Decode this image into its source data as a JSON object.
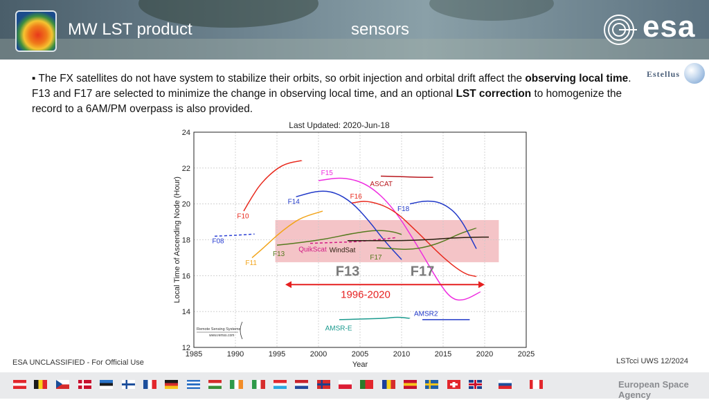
{
  "header": {
    "title": "MW LST product",
    "subtitle": "sensors",
    "brand_logo": "esa",
    "partner_logo": "Estellus"
  },
  "body": {
    "bullet_marker": "▪",
    "paragraph": [
      {
        "text": "The FX satellites do not have system to stabilize their orbits, so orbit injection and orbital drift affect the ",
        "bold": false
      },
      {
        "text": "observing local time",
        "bold": true
      },
      {
        "text": ". F13 and F17 are selected to minimize the change in observing local time, and an optional  ",
        "bold": false
      },
      {
        "text": "LST correction",
        "bold": true
      },
      {
        "text": " to homogenize the record to a 6AM/PM overpass is also provided.",
        "bold": false
      }
    ]
  },
  "chart_data": {
    "type": "line",
    "title": "Last Updated: 2020-Jun-18",
    "xlabel": "Year",
    "ylabel": "Local Time of Ascending Node (Hour)",
    "xlim": [
      1985,
      2025
    ],
    "ylim": [
      12,
      24
    ],
    "xticks": [
      1985,
      1990,
      1995,
      2000,
      2005,
      2010,
      2015,
      2020,
      2025
    ],
    "yticks": [
      12,
      14,
      16,
      18,
      20,
      22,
      24
    ],
    "grid": true,
    "highlight_band": {
      "x": [
        1994.8,
        2021.7
      ],
      "y": [
        16.75,
        19.1
      ],
      "color": "#f4c4c7"
    },
    "arrow": {
      "x": [
        1996,
        2020
      ],
      "y": 15.5,
      "label": "1996-2020",
      "color": "#e62020"
    },
    "big_labels": [
      {
        "text": "F13",
        "x": 2003.5,
        "y": 16.0
      },
      {
        "text": "F17",
        "x": 2012.5,
        "y": 16.0
      }
    ],
    "credit": {
      "line1": "Remote Sensing Systems",
      "line2": "www.remss.com"
    },
    "series": [
      {
        "name": "F08",
        "color": "#2a3fd4",
        "dashed": true,
        "label_xy": [
          1987.2,
          17.8
        ],
        "points": [
          [
            1987.5,
            18.2
          ],
          [
            1990,
            18.25
          ],
          [
            1992.3,
            18.32
          ]
        ]
      },
      {
        "name": "F10",
        "color": "#e8281c",
        "label_xy": [
          1990.2,
          19.2
        ],
        "points": [
          [
            1991,
            19.6
          ],
          [
            1992,
            20.4
          ],
          [
            1993,
            21.1
          ],
          [
            1994.5,
            21.8
          ],
          [
            1996,
            22.25
          ],
          [
            1998,
            22.42
          ]
        ]
      },
      {
        "name": "F11",
        "color": "#f2a41a",
        "label_xy": [
          1991.2,
          16.6
        ],
        "points": [
          [
            1992,
            17.0
          ],
          [
            1993.5,
            17.6
          ],
          [
            1995,
            18.25
          ],
          [
            1996.5,
            18.8
          ],
          [
            1998,
            19.25
          ],
          [
            2000.5,
            19.6
          ]
        ]
      },
      {
        "name": "F13",
        "color": "#557a1e",
        "label_xy": [
          1994.5,
          17.1
        ],
        "points": [
          [
            1995,
            17.7
          ],
          [
            1998,
            17.85
          ],
          [
            2001,
            18.05
          ],
          [
            2004,
            18.35
          ],
          [
            2007,
            18.55
          ],
          [
            2009,
            18.45
          ],
          [
            2010,
            18.3
          ]
        ]
      },
      {
        "name": "F14",
        "color": "#2038c8",
        "label_xy": [
          1996.3,
          20.0
        ],
        "points": [
          [
            1997.3,
            20.4
          ],
          [
            2000,
            20.75
          ],
          [
            2002,
            20.65
          ],
          [
            2004,
            20.1
          ],
          [
            2006,
            19.1
          ],
          [
            2008,
            17.9
          ],
          [
            2010,
            16.9
          ]
        ]
      },
      {
        "name": "F15",
        "color": "#ee2be0",
        "label_xy": [
          2000.3,
          21.6
        ],
        "points": [
          [
            2000,
            21.3
          ],
          [
            2003,
            21.5
          ],
          [
            2006,
            21.1
          ],
          [
            2009,
            19.8
          ],
          [
            2012,
            17.6
          ],
          [
            2014.5,
            15.6
          ],
          [
            2016,
            14.7
          ],
          [
            2017.5,
            14.6
          ],
          [
            2019.5,
            15.1
          ]
        ]
      },
      {
        "name": "F16",
        "color": "#e8281c",
        "label_xy": [
          2003.8,
          20.3
        ],
        "points": [
          [
            2004,
            20.05
          ],
          [
            2006,
            20.2
          ],
          [
            2009,
            19.7
          ],
          [
            2012,
            18.4
          ],
          [
            2015,
            17.0
          ],
          [
            2017.5,
            16.1
          ],
          [
            2019,
            15.95
          ]
        ]
      },
      {
        "name": "F17",
        "color": "#557a1e",
        "label_xy": [
          2006.2,
          16.9
        ],
        "points": [
          [
            2007,
            17.55
          ],
          [
            2009,
            17.5
          ],
          [
            2011,
            17.45
          ],
          [
            2013,
            17.6
          ],
          [
            2015,
            17.9
          ],
          [
            2017,
            18.35
          ],
          [
            2019,
            18.65
          ]
        ]
      },
      {
        "name": "F18",
        "color": "#2038c8",
        "label_xy": [
          2009.5,
          19.6
        ],
        "points": [
          [
            2011,
            20.0
          ],
          [
            2013,
            20.2
          ],
          [
            2015,
            20.05
          ],
          [
            2017,
            19.3
          ],
          [
            2019,
            17.5
          ]
        ]
      },
      {
        "name": "ASCAT",
        "color": "#b8161c",
        "label_xy": [
          2006.2,
          21.0
        ],
        "points": [
          [
            2007.5,
            21.55
          ],
          [
            2010,
            21.52
          ],
          [
            2012,
            21.48
          ],
          [
            2013.8,
            21.48
          ]
        ]
      },
      {
        "name": "QuikScat",
        "color": "#d11a84",
        "dashed": true,
        "label_xy": [
          1997.6,
          17.35
        ],
        "points": [
          [
            1999,
            17.8
          ],
          [
            2002,
            17.85
          ],
          [
            2005,
            17.9
          ],
          [
            2008,
            18.05
          ],
          [
            2009.3,
            18.12
          ]
        ]
      },
      {
        "name": "WindSat",
        "color": "#2b1d0e",
        "label_xy": [
          2001.3,
          17.3
        ],
        "points": [
          [
            2003.5,
            17.95
          ],
          [
            2007,
            17.95
          ],
          [
            2010,
            17.95
          ],
          [
            2013,
            18.0
          ],
          [
            2016,
            18.1
          ],
          [
            2019,
            18.15
          ],
          [
            2020.5,
            18.15
          ]
        ]
      },
      {
        "name": "AMSR-E",
        "color": "#1a9a8e",
        "label_xy": [
          2000.8,
          12.95
        ],
        "points": [
          [
            2002.5,
            13.55
          ],
          [
            2005,
            13.58
          ],
          [
            2008,
            13.62
          ],
          [
            2009.5,
            13.7
          ],
          [
            2011,
            13.62
          ]
        ]
      },
      {
        "name": "AMSR2",
        "color": "#2038c8",
        "label_xy": [
          2011.5,
          13.75
        ],
        "points": [
          [
            2012.5,
            13.55
          ],
          [
            2015,
            13.55
          ],
          [
            2018.2,
            13.55
          ]
        ]
      }
    ]
  },
  "footer": {
    "classification": "ESA UNCLASSIFIED - For Official Use",
    "event": "LSTcci UWS 12/2024",
    "agency": "European Space Agency"
  },
  "flags": [
    {
      "name": "austria",
      "colors": [
        "#e2262c",
        "#ffffff",
        "#e2262c"
      ],
      "dir": "h"
    },
    {
      "name": "belgium",
      "colors": [
        "#1a1a1a",
        "#f7d21c",
        "#e2262c"
      ],
      "dir": "v"
    },
    {
      "name": "czechia",
      "colors": [
        "#ffffff",
        "#d62c2c"
      ],
      "dir": "h",
      "tri": "#1a4e98"
    },
    {
      "name": "denmark",
      "colors": [
        "#c8102e"
      ],
      "dir": "cross",
      "cross": "#ffffff"
    },
    {
      "name": "estonia",
      "colors": [
        "#2a74c9",
        "#1a1a1a",
        "#ffffff"
      ],
      "dir": "h"
    },
    {
      "name": "finland",
      "colors": [
        "#ffffff"
      ],
      "dir": "cross",
      "cross": "#1d4f9c"
    },
    {
      "name": "france",
      "colors": [
        "#1d4f9c",
        "#ffffff",
        "#e2262c"
      ],
      "dir": "v"
    },
    {
      "name": "germany",
      "colors": [
        "#1a1a1a",
        "#d62c2c",
        "#f7c51c"
      ],
      "dir": "h"
    },
    {
      "name": "greece",
      "colors": [
        "#2a6fc4",
        "#ffffff",
        "#2a6fc4",
        "#ffffff",
        "#2a6fc4"
      ],
      "dir": "h"
    },
    {
      "name": "hungary",
      "colors": [
        "#d62c2c",
        "#ffffff",
        "#3a8f3a"
      ],
      "dir": "h"
    },
    {
      "name": "ireland",
      "colors": [
        "#2e9a49",
        "#ffffff",
        "#f28c28"
      ],
      "dir": "v"
    },
    {
      "name": "italy",
      "colors": [
        "#2e9a49",
        "#ffffff",
        "#d62c2c"
      ],
      "dir": "v"
    },
    {
      "name": "luxembourg",
      "colors": [
        "#e2262c",
        "#ffffff",
        "#2aa7e0"
      ],
      "dir": "h"
    },
    {
      "name": "netherlands",
      "colors": [
        "#c8222c",
        "#ffffff",
        "#234a9c"
      ],
      "dir": "h"
    },
    {
      "name": "norway",
      "colors": [
        "#d62c2c"
      ],
      "dir": "cross",
      "cross": "#1d3f8c"
    },
    {
      "name": "poland",
      "colors": [
        "#ffffff",
        "#dc1e35"
      ],
      "dir": "h"
    },
    {
      "name": "portugal",
      "colors": [
        "#2a7a2a",
        "#e2262c"
      ],
      "dir": "v2"
    },
    {
      "name": "romania",
      "colors": [
        "#1d3f9c",
        "#f7d21c",
        "#d62c2c"
      ],
      "dir": "v"
    },
    {
      "name": "spain",
      "colors": [
        "#c8102e",
        "#f7c51c",
        "#c8102e"
      ],
      "dir": "h"
    },
    {
      "name": "sweden",
      "colors": [
        "#1f5fa8"
      ],
      "dir": "cross",
      "cross": "#f7c51c"
    },
    {
      "name": "switzerland",
      "colors": [
        "#e2262c"
      ],
      "dir": "swiss"
    },
    {
      "name": "united-kingdom",
      "colors": [
        "#1d3f8c"
      ],
      "dir": "uk"
    },
    {
      "name": "slovenia",
      "colors": [
        "#ffffff",
        "#1d4f9c",
        "#e2262c"
      ],
      "dir": "h"
    },
    {
      "name": "canada",
      "colors": [
        "#e2262c",
        "#ffffff",
        "#e2262c"
      ],
      "dir": "canada"
    }
  ]
}
